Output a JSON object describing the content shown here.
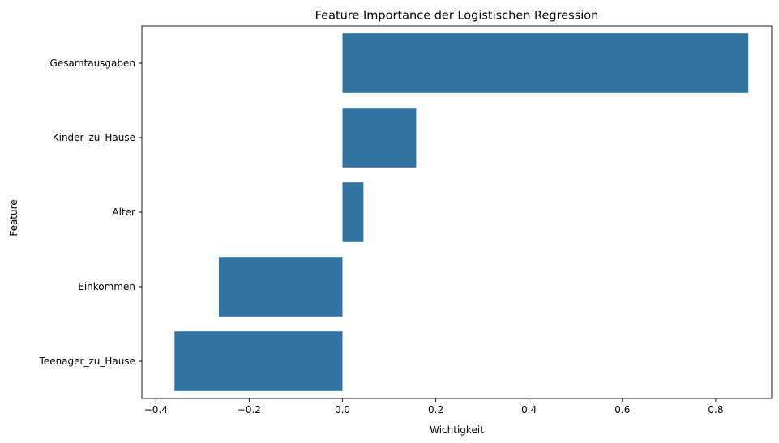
{
  "chart_data": {
    "type": "bar",
    "orientation": "horizontal",
    "title": "Feature Importance der Logistischen Regression",
    "xlabel": "Wichtigkeit",
    "ylabel": "Feature",
    "categories": [
      "Gesamtausgaben",
      "Kinder_zu_Hause",
      "Alter",
      "Einkommen",
      "Teenager_zu_Hause"
    ],
    "values": [
      0.87,
      0.158,
      0.045,
      -0.265,
      -0.36
    ],
    "xlim": [
      -0.43,
      0.92
    ],
    "xticks": [
      -0.4,
      -0.2,
      0.0,
      0.2,
      0.4,
      0.6,
      0.8
    ],
    "xtick_labels": [
      "−0.4",
      "−0.2",
      "0.0",
      "0.2",
      "0.4",
      "0.6",
      "0.8"
    ],
    "grid": false,
    "legend": "none",
    "colors": {
      "bar": "#3274a1",
      "axis": "#000000"
    }
  }
}
